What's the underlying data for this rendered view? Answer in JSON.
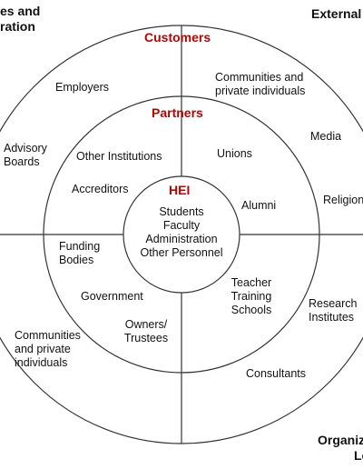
{
  "corners": {
    "top_left": "es and\nration",
    "top_right": "External",
    "bottom_right_line1": "Organiz",
    "bottom_right_line2": "Lo"
  },
  "rings": {
    "outer": "Customers",
    "middle": "Partners",
    "core": "HEI"
  },
  "core_members": [
    "Students",
    "Faculty",
    "Administration",
    "Other Personnel"
  ],
  "outer_ring_items": {
    "employers": "Employers",
    "communities_top": "Communities and\nprivate individuals",
    "media": "Media",
    "advisory_boards": "Advisory\nBoards",
    "religion": "Religion",
    "research_institutes": "Research\nInstitutes",
    "communities_bottom": "Communities\nand private\nindividuals",
    "consultants": "Consultants"
  },
  "middle_ring_items": {
    "other_institutions": "Other Institutions",
    "unions": "Unions",
    "accreditors": "Accreditors",
    "alumni": "Alumni",
    "funding_bodies": "Funding\nBodies",
    "government": "Government",
    "teacher_training": "Teacher\nTraining\nSchools",
    "owners_trustees": "Owners/\nTrustees"
  },
  "colors": {
    "accent": "#c00000",
    "lines": "#333333"
  }
}
